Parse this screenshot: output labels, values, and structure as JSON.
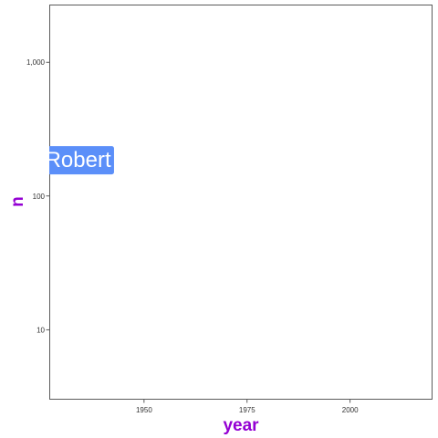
{
  "chart_data": {
    "type": "scatter",
    "title": "",
    "xlabel": "year",
    "ylabel": "n",
    "xlim": [
      1927,
      2020
    ],
    "ylim": [
      3,
      2700
    ],
    "y_scale": "log10",
    "grid": false,
    "x_ticks": [
      {
        "value": 1950,
        "label": "1950"
      },
      {
        "value": 1975,
        "label": "1975"
      },
      {
        "value": 2000,
        "label": "2000"
      }
    ],
    "y_ticks": [
      {
        "value": 10,
        "label": "10"
      },
      {
        "value": 100,
        "label": "100"
      },
      {
        "value": 1000,
        "label": "1,000"
      }
    ],
    "points": [
      {
        "x": 1934,
        "y": 185,
        "label": "Robert"
      }
    ],
    "colors": {
      "axis_title": "#9400d3",
      "label_fill": "#5b8ff9",
      "label_text": "#ffffff",
      "panel_border": "#333333",
      "tick_text": "#333333"
    }
  }
}
